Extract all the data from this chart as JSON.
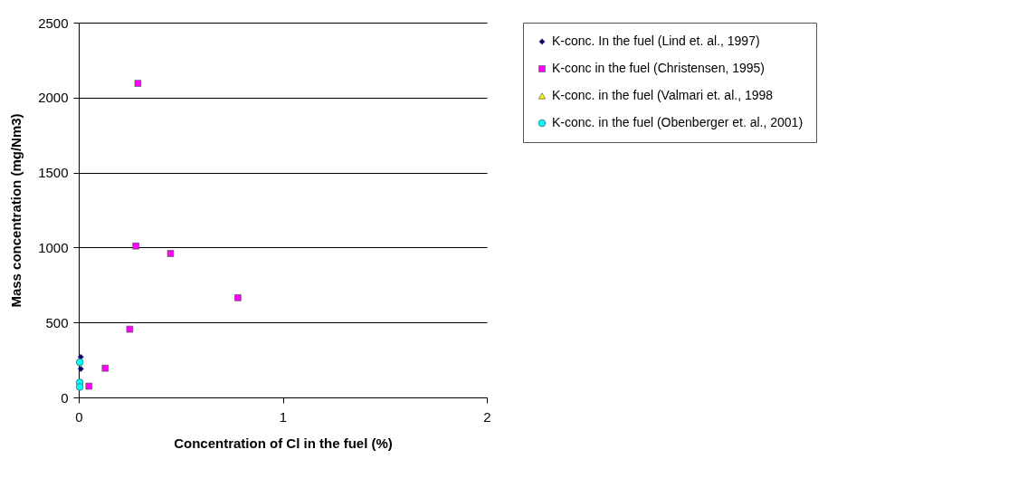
{
  "chart_data": {
    "type": "scatter",
    "xlabel": "Concentration of Cl in the fuel  (%)",
    "ylabel": "Mass concentration  (mg/Nm3)",
    "xlim": [
      0,
      2
    ],
    "xticks": [
      0,
      1,
      2
    ],
    "ylim": [
      0,
      2500
    ],
    "yticks": [
      0,
      500,
      1000,
      1500,
      2000,
      2500
    ],
    "grid": "y",
    "legend": "right",
    "series": [
      {
        "name": "K-conc. In the fuel (Lind et. al., 1997)",
        "color": "#000080",
        "marker": "diamond",
        "x": [
          0.01,
          0.01
        ],
        "values": [
          270,
          190
        ]
      },
      {
        "name": "K-conc in the fuel  (Christensen, 1995)",
        "color": "#ff00ff",
        "marker": "square",
        "x": [
          0.29,
          0.28,
          0.45,
          0.78,
          0.25,
          0.13,
          0.05
        ],
        "values": [
          2095,
          1010,
          960,
          665,
          455,
          195,
          75
        ]
      },
      {
        "name": "K-conc. in the fuel (Valmari et. al., 1998",
        "color": "#ffff00",
        "marker": "triangle"
      },
      {
        "name": "K-conc. in the fuel (Obenberger et. al., 2001)",
        "color": "#00ffff",
        "marker": "circle",
        "x": [
          0.005,
          0.005,
          0.005
        ],
        "values": [
          235,
          100,
          70
        ]
      }
    ]
  }
}
